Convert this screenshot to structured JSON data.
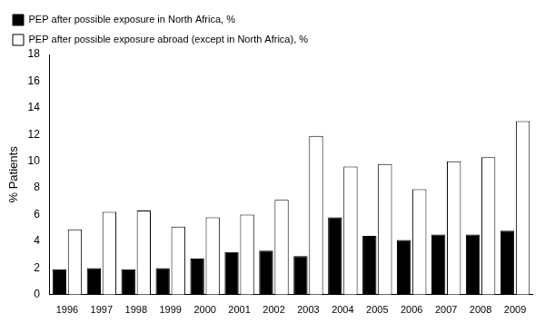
{
  "chart_data": {
    "type": "bar",
    "categories": [
      "1996",
      "1997",
      "1998",
      "1999",
      "2000",
      "2001",
      "2002",
      "2003",
      "2004",
      "2005",
      "2006",
      "2007",
      "2008",
      "2009"
    ],
    "series": [
      {
        "name": "PEP after possible exposure in North Africa, %",
        "color": "#000000",
        "values": [
          1.9,
          2.0,
          1.9,
          2.0,
          2.7,
          3.2,
          3.3,
          2.9,
          5.8,
          4.4,
          4.1,
          4.5,
          4.5,
          4.8
        ]
      },
      {
        "name": "PEP after possible exposure abroad (except in North Africa), %",
        "color": "#ffffff",
        "values": [
          4.9,
          6.2,
          6.3,
          5.1,
          5.8,
          6.0,
          7.1,
          11.9,
          9.6,
          9.8,
          7.9,
          10.0,
          10.3,
          13.0
        ]
      }
    ],
    "y_label": "% Patients",
    "ylim": [
      0,
      18
    ],
    "yticks": [
      0,
      2,
      4,
      6,
      8,
      10,
      12,
      14,
      16,
      18
    ],
    "grid": false,
    "legend": "top-left"
  }
}
